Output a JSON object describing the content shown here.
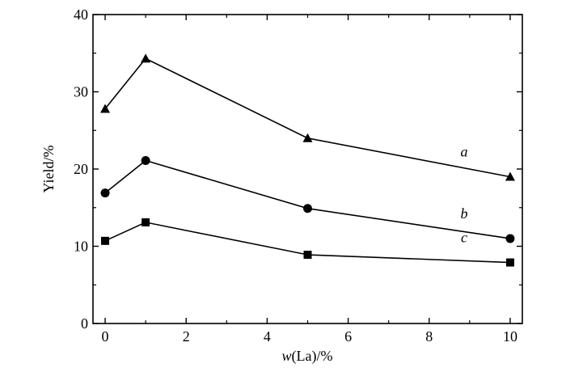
{
  "chart_data": {
    "type": "line",
    "xlabel_italic": "w",
    "xlabel_rest": "(La)/%",
    "ylabel": "Yield/%",
    "xlim": [
      -0.3,
      10.3
    ],
    "ylim": [
      0,
      40
    ],
    "x_ticks": [
      0,
      2,
      4,
      6,
      8,
      10
    ],
    "x_tick_labels": [
      "0",
      "2",
      "4",
      "6",
      "8",
      "10"
    ],
    "y_ticks": [
      0,
      10,
      20,
      30,
      40
    ],
    "y_tick_labels": [
      "0",
      "10",
      "20",
      "30",
      "40"
    ],
    "x_minor_ticks": [
      1,
      3,
      5,
      7,
      9
    ],
    "y_minor_ticks": [
      5,
      15,
      25,
      35
    ],
    "grid": false,
    "legend": "none",
    "color": "#000000",
    "series": [
      {
        "name": "a",
        "marker": "triangle",
        "x": [
          0,
          1,
          5,
          10
        ],
        "values": [
          27.8,
          34.3,
          24.0,
          19.0
        ]
      },
      {
        "name": "b",
        "marker": "circle",
        "x": [
          0,
          1,
          5,
          10
        ],
        "values": [
          16.9,
          21.1,
          14.9,
          11.0
        ]
      },
      {
        "name": "c",
        "marker": "square",
        "x": [
          0,
          1,
          5,
          10
        ],
        "values": [
          10.7,
          13.1,
          8.9,
          7.9
        ]
      }
    ]
  }
}
